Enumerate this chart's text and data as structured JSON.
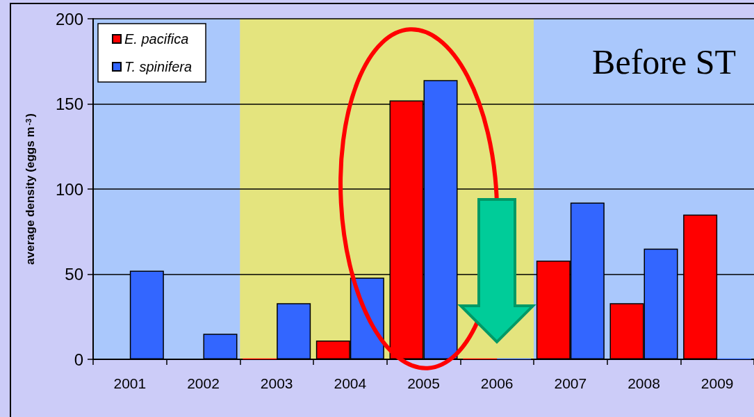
{
  "chart_data": {
    "type": "bar",
    "ylabel": "average density (eggs m$^{-3}$)",
    "categories": [
      "2001",
      "2002",
      "2003",
      "2004",
      "2005",
      "2006",
      "2007",
      "2008",
      "2009"
    ],
    "series": [
      {
        "name": "E. pacifica",
        "color": "#ff0000",
        "values": [
          null,
          null,
          0.5,
          11,
          152,
          0.5,
          58,
          33,
          85
        ]
      },
      {
        "name": "T. spinifera",
        "color": "#3366ff",
        "values": [
          52,
          15,
          33,
          48,
          164,
          0.5,
          92,
          65,
          0.5
        ]
      }
    ],
    "ylim": [
      0,
      200
    ],
    "yticks": [
      0,
      50,
      100,
      150,
      200
    ],
    "grid": "y",
    "legend": "top left",
    "bands": [
      {
        "axis": "x",
        "from": "2001",
        "to": "2002",
        "color": "#aac8fc"
      },
      {
        "axis": "x",
        "from": "2003",
        "to": "2006",
        "color": "#e4e47e"
      },
      {
        "axis": "x",
        "from": "2007",
        "to": "2009",
        "color": "#aac8fc"
      }
    ],
    "annotations": [
      "Before ST"
    ]
  }
}
